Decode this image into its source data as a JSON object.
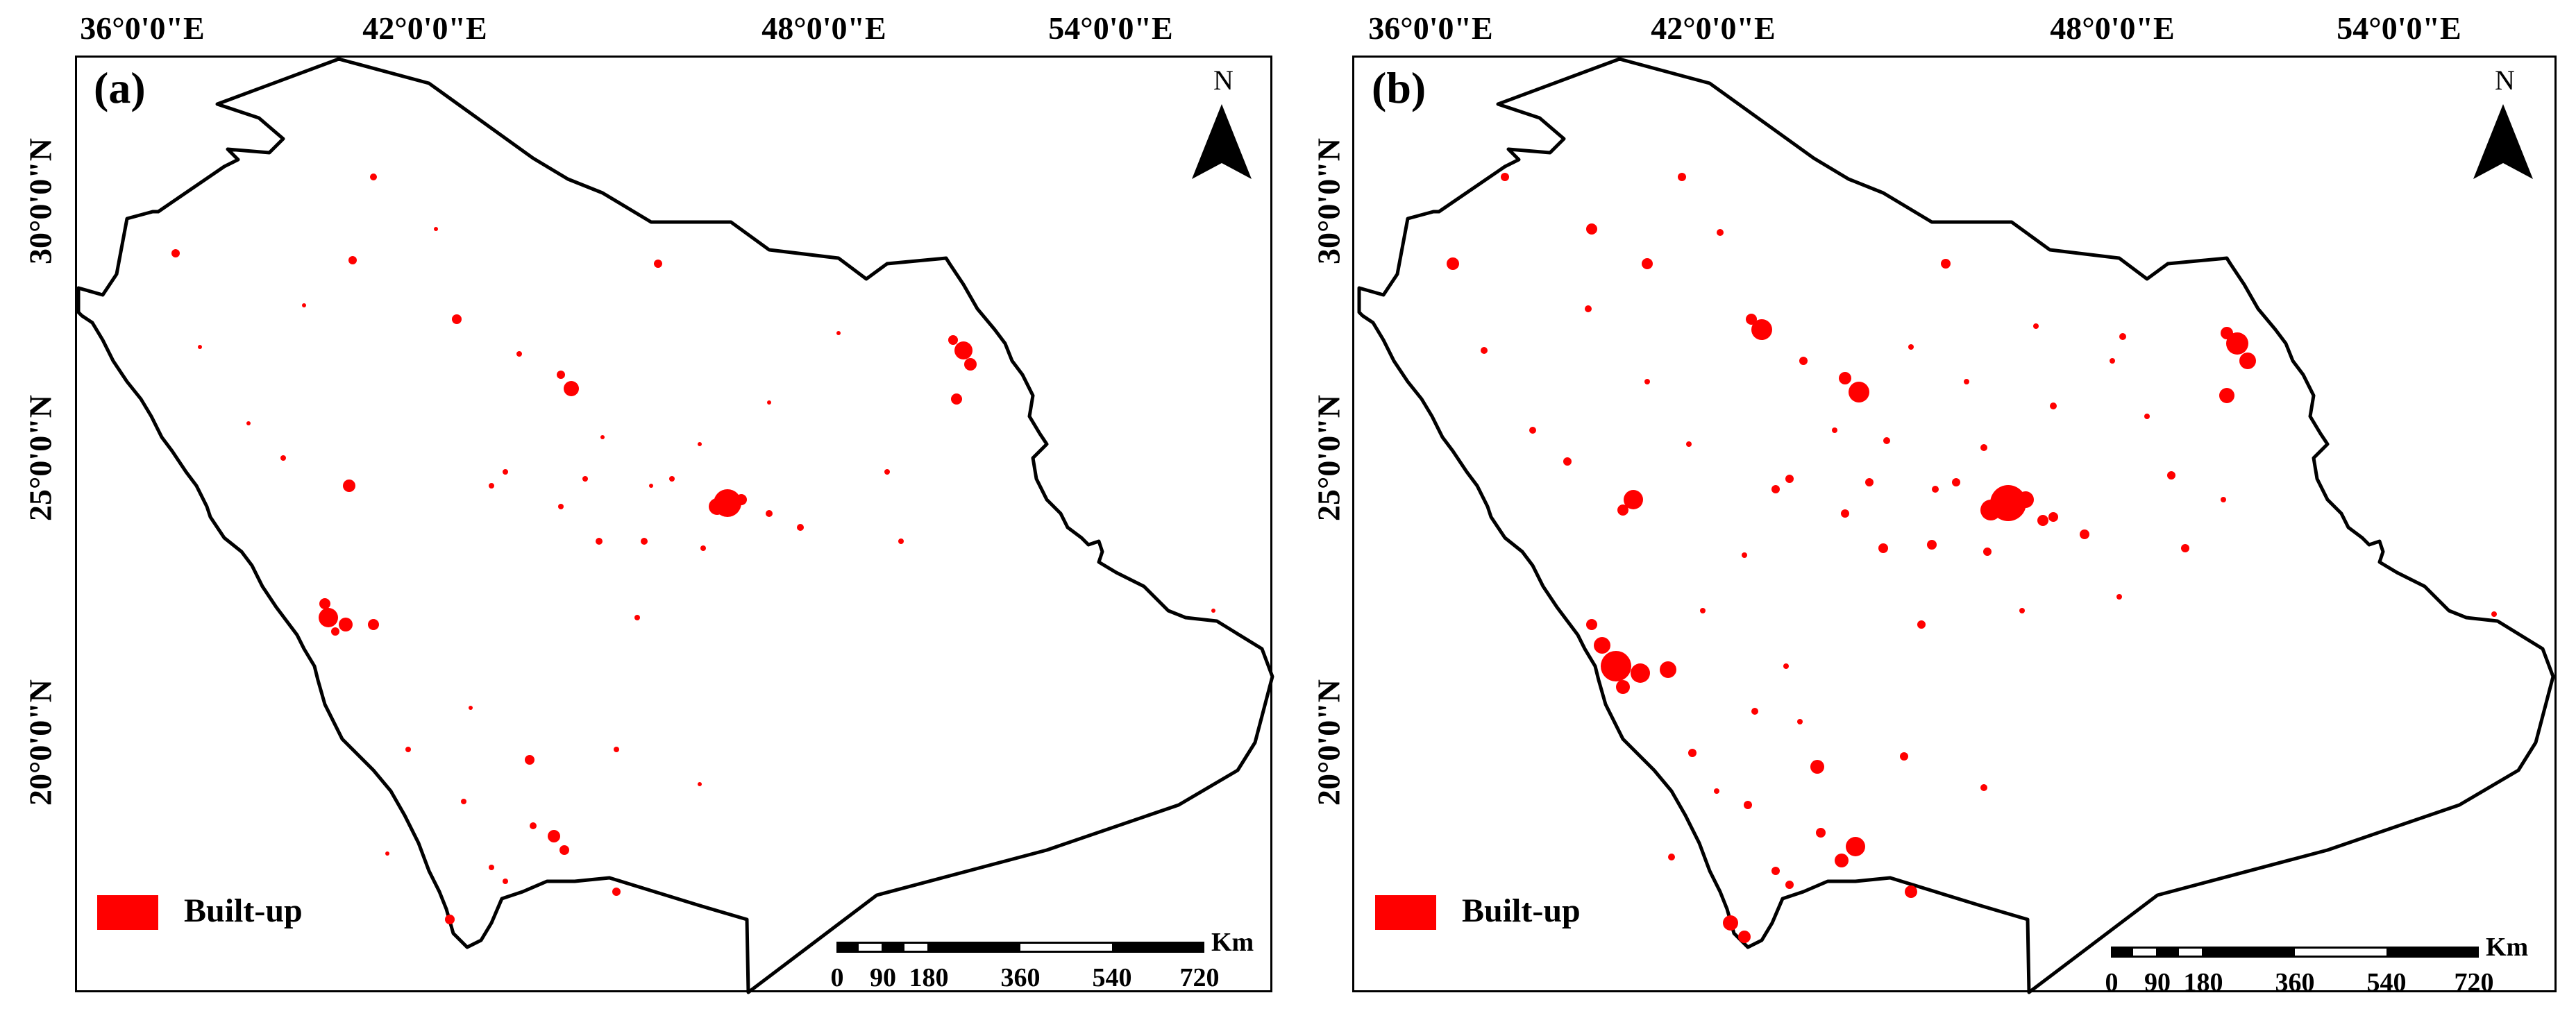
{
  "panels": [
    {
      "label": "(a)",
      "legend_label": "Built-up"
    },
    {
      "label": "(b)",
      "legend_label": "Built-up"
    }
  ],
  "longitude_labels": [
    "36°0'0\"E",
    "42°0'0\"E",
    "48°0'0\"E",
    "54°0'0\"E"
  ],
  "latitude_labels": [
    "30°0'0\"N",
    "25°0'0\"N",
    "20°0'0\"N"
  ],
  "north_label": "N",
  "scale_bar": {
    "unit": "Km",
    "labels": [
      "0",
      "90",
      "180",
      "360",
      "540",
      "720"
    ]
  },
  "colors": {
    "built_up": "#ff0000",
    "boundary": "#000000",
    "frame": "#000000"
  }
}
